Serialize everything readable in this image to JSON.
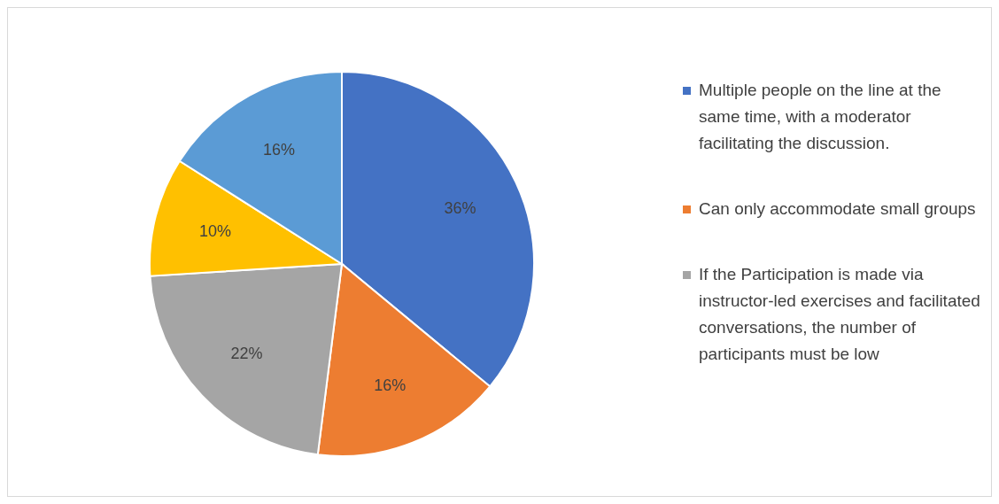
{
  "chart_data": {
    "type": "pie",
    "categories": [
      "Multiple people on the line at the same time, with a moderator facilitating the discussion.",
      "Can only accommodate small groups",
      "If the Participation is made via instructor-led exercises and facilitated conversations, the number of participants must be low",
      null,
      null
    ],
    "values": [
      36,
      16,
      22,
      10,
      16
    ],
    "colors": [
      "#4472c4",
      "#ed7d31",
      "#a5a5a5",
      "#ffc000",
      "#5b9bd5"
    ],
    "value_labels": [
      "36%",
      "16%",
      "22%",
      "10%",
      "16%"
    ],
    "legend": "right"
  }
}
